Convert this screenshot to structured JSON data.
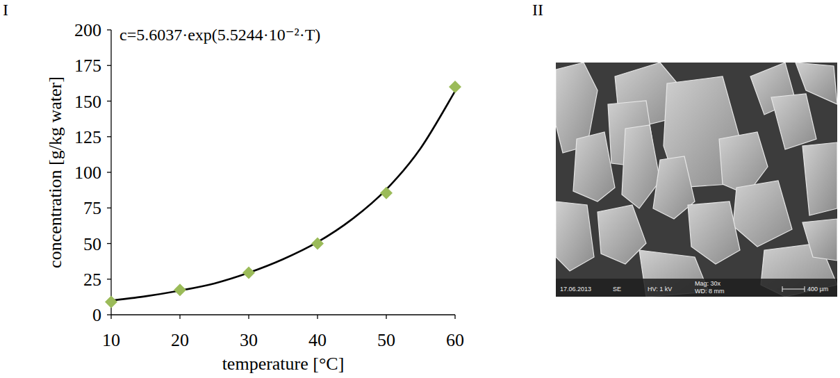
{
  "chart_data": {
    "type": "scatter",
    "panel_label": "I",
    "x_label": "temperature [°C]",
    "y_label": "concentration [g/kg water]",
    "annotations": [
      {
        "text": "c=5.6037·exp(5.5244·10⁻²·T)"
      }
    ],
    "series": [
      {
        "type": "scatter",
        "marker": "diamond",
        "color": "#9bbb59",
        "x": [
          10,
          20,
          30,
          40,
          50,
          60
        ],
        "values": [
          9,
          17.5,
          29.5,
          50,
          85.5,
          160
        ]
      },
      {
        "type": "line",
        "line_style": "solid",
        "color": "#000000",
        "x": [
          10,
          15,
          20,
          25,
          30,
          35,
          40,
          45,
          50,
          55,
          60
        ],
        "values": [
          10,
          13,
          17,
          22,
          29.5,
          39,
          51,
          67,
          88,
          117,
          157
        ]
      }
    ],
    "xlim": [
      10,
      60
    ],
    "xticks": [
      10,
      20,
      30,
      40,
      50,
      60
    ],
    "ylim": [
      0,
      200
    ],
    "yticks": [
      0,
      25,
      50,
      75,
      100,
      125,
      150,
      175,
      200
    ],
    "grid": false
  },
  "image_panel": {
    "label": "II",
    "info": [
      "17.06.2013",
      "SE",
      "HV: 1 kV",
      "Mag: 30x",
      "WD: 8 mm",
      "400 µm"
    ]
  }
}
